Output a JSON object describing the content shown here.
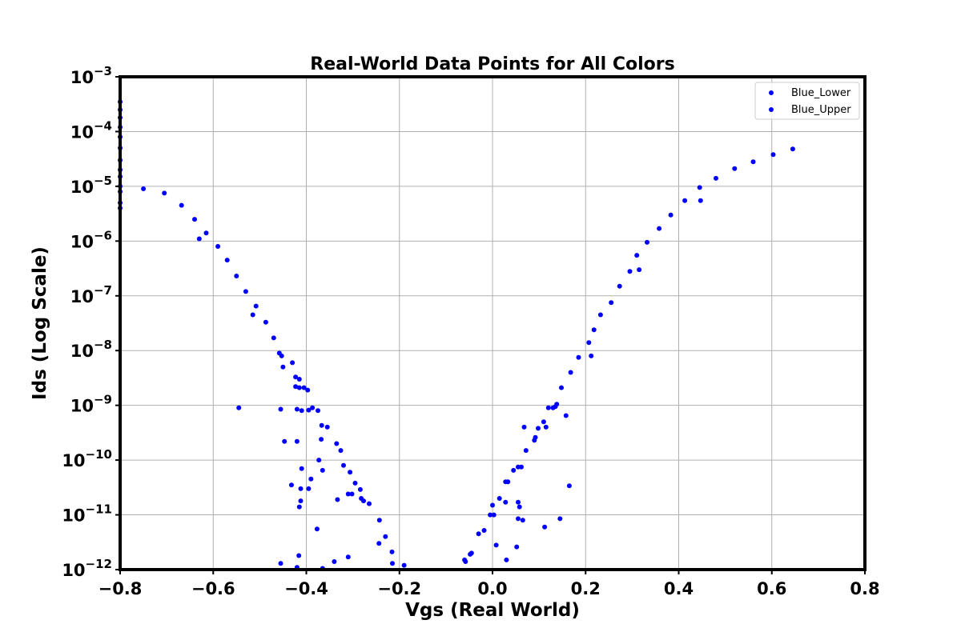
{
  "chart_data": {
    "type": "scatter",
    "title": "Real-World Data Points for All Colors",
    "xlabel": "Vgs (Real World)",
    "ylabel": "Ids (Log Scale)",
    "xlim": [
      -0.8,
      0.8
    ],
    "ylim": [
      1e-12,
      0.001
    ],
    "yscale": "log",
    "grid": true,
    "legend_position": "top-right",
    "x_ticks": [
      "−0.8",
      "−0.6",
      "−0.4",
      "−0.2",
      "0.0",
      "0.2",
      "0.4",
      "0.6",
      "0.8"
    ],
    "x_tick_values": [
      -0.8,
      -0.6,
      -0.4,
      -0.2,
      0.0,
      0.2,
      0.4,
      0.6,
      0.8
    ],
    "y_ticks": [
      {
        "base": "10",
        "exp": "−12",
        "value": -12
      },
      {
        "base": "10",
        "exp": "−11",
        "value": -11
      },
      {
        "base": "10",
        "exp": "−10",
        "value": -10
      },
      {
        "base": "10",
        "exp": "−9",
        "value": -9
      },
      {
        "base": "10",
        "exp": "−8",
        "value": -8
      },
      {
        "base": "10",
        "exp": "−7",
        "value": -7
      },
      {
        "base": "10",
        "exp": "−6",
        "value": -6
      },
      {
        "base": "10",
        "exp": "−5",
        "value": -5
      },
      {
        "base": "10",
        "exp": "−4",
        "value": -4
      },
      {
        "base": "10",
        "exp": "−3",
        "value": -3
      }
    ],
    "series": [
      {
        "name": "Blue_Lower",
        "color": "#0000ff",
        "points": [
          [
            -0.8,
            0.00035
          ],
          [
            -0.8,
            0.00025
          ],
          [
            -0.8,
            0.00018
          ],
          [
            -0.8,
            0.00012
          ],
          [
            -0.8,
            8e-05
          ],
          [
            -0.8,
            5e-05
          ],
          [
            -0.8,
            3e-05
          ],
          [
            -0.8,
            2e-05
          ],
          [
            -0.8,
            1.5e-05
          ],
          [
            -0.8,
            1e-05
          ],
          [
            -0.8,
            8e-06
          ],
          [
            -0.8,
            5e-06
          ],
          [
            -0.8,
            4e-06
          ],
          [
            -0.75,
            9e-06
          ],
          [
            -0.705,
            7.5e-06
          ],
          [
            -0.668,
            4.5e-06
          ],
          [
            -0.64,
            2.5e-06
          ],
          [
            -0.63,
            1.1e-06
          ],
          [
            -0.615,
            1.4e-06
          ],
          [
            -0.59,
            8e-07
          ],
          [
            -0.57,
            4.5e-07
          ],
          [
            -0.55,
            2.3e-07
          ],
          [
            -0.53,
            1.2e-07
          ],
          [
            -0.515,
            4.5e-08
          ],
          [
            -0.508,
            6.5e-08
          ],
          [
            -0.487,
            3.3e-08
          ],
          [
            -0.47,
            1.7e-08
          ],
          [
            -0.458,
            9e-09
          ],
          [
            -0.453,
            8e-09
          ],
          [
            -0.45,
            5e-09
          ],
          [
            -0.43,
            6e-09
          ],
          [
            -0.423,
            3.3e-09
          ],
          [
            -0.415,
            3e-09
          ],
          [
            -0.423,
            2.2e-09
          ],
          [
            -0.415,
            2.1e-09
          ],
          [
            -0.405,
            2.1e-09
          ],
          [
            -0.397,
            1.9e-09
          ],
          [
            -0.42,
            8.5e-10
          ],
          [
            -0.41,
            8e-10
          ],
          [
            -0.395,
            8.2e-10
          ],
          [
            -0.387,
            9e-10
          ],
          [
            -0.375,
            8e-10
          ],
          [
            -0.367,
            4.3e-10
          ],
          [
            -0.355,
            4e-10
          ],
          [
            -0.368,
            2.4e-10
          ],
          [
            -0.335,
            2e-10
          ],
          [
            -0.326,
            1.5e-10
          ],
          [
            -0.32,
            8e-11
          ],
          [
            -0.306,
            6e-11
          ],
          [
            -0.295,
            3.8e-11
          ],
          [
            -0.284,
            2.9e-11
          ],
          [
            -0.282,
            2e-11
          ],
          [
            -0.277,
            1.8e-11
          ],
          [
            -0.265,
            1.6e-11
          ],
          [
            -0.243,
            8e-12
          ],
          [
            -0.23,
            4e-12
          ],
          [
            -0.216,
            2.1e-12
          ],
          [
            -0.244,
            3e-12
          ],
          [
            -0.215,
            1.3e-12
          ],
          [
            -0.19,
            1.2e-12
          ]
        ]
      },
      {
        "name": "Blue_Upper",
        "color": "#0000ff",
        "points": [
          [
            -0.545,
            9e-10
          ],
          [
            -0.455,
            8.5e-10
          ],
          [
            -0.447,
            2.2e-10
          ],
          [
            -0.42,
            2.2e-10
          ],
          [
            -0.41,
            7e-11
          ],
          [
            -0.39,
            4.5e-11
          ],
          [
            -0.432,
            3.5e-11
          ],
          [
            -0.412,
            3e-11
          ],
          [
            -0.395,
            3e-11
          ],
          [
            -0.412,
            1.8e-11
          ],
          [
            -0.415,
            1.4e-11
          ],
          [
            -0.373,
            1e-10
          ],
          [
            -0.365,
            6.5e-11
          ],
          [
            -0.31,
            2.4e-11
          ],
          [
            -0.302,
            2.4e-11
          ],
          [
            -0.333,
            1.9e-11
          ],
          [
            -0.377,
            5.5e-12
          ],
          [
            -0.416,
            1.8e-12
          ],
          [
            -0.455,
            1.3e-12
          ],
          [
            -0.31,
            1.7e-12
          ],
          [
            -0.34,
            1.4e-12
          ],
          [
            -0.42,
            1.1e-12
          ],
          [
            -0.365,
            1.05e-12
          ],
          [
            -0.06,
            1.5e-12
          ],
          [
            -0.058,
            1.4e-12
          ],
          [
            -0.048,
            1.9e-12
          ],
          [
            -0.045,
            2e-12
          ],
          [
            -0.03,
            4.5e-12
          ],
          [
            -0.018,
            5.2e-12
          ],
          [
            -0.005,
            1e-11
          ],
          [
            0.0,
            1.5e-11
          ],
          [
            0.003,
            1e-11
          ],
          [
            0.008,
            2.8e-12
          ],
          [
            0.015,
            2e-11
          ],
          [
            0.028,
            1.7e-11
          ],
          [
            0.028,
            4e-11
          ],
          [
            0.033,
            4e-11
          ],
          [
            0.03,
            1.5e-12
          ],
          [
            0.045,
            6.5e-11
          ],
          [
            0.052,
            2.6e-12
          ],
          [
            0.055,
            7.5e-11
          ],
          [
            0.062,
            7.5e-11
          ],
          [
            0.055,
            8.5e-12
          ],
          [
            0.055,
            1.7e-11
          ],
          [
            0.058,
            1.4e-11
          ],
          [
            0.065,
            8e-12
          ],
          [
            0.068,
            4e-10
          ],
          [
            0.072,
            1.5e-10
          ],
          [
            0.09,
            2.3e-10
          ],
          [
            0.092,
            2.6e-10
          ],
          [
            0.098,
            3.8e-10
          ],
          [
            0.11,
            5e-10
          ],
          [
            0.115,
            4e-10
          ],
          [
            0.112,
            6e-12
          ],
          [
            0.12,
            9e-10
          ],
          [
            0.13,
            9e-10
          ],
          [
            0.135,
            9.5e-10
          ],
          [
            0.138,
            1.05e-09
          ],
          [
            0.145,
            8.5e-12
          ],
          [
            0.148,
            2.1e-09
          ],
          [
            0.158,
            6.5e-10
          ],
          [
            0.165,
            3.4e-11
          ],
          [
            0.168,
            4e-09
          ],
          [
            0.185,
            7.5e-09
          ],
          [
            0.207,
            1.4e-08
          ],
          [
            0.212,
            8e-09
          ],
          [
            0.218,
            2.4e-08
          ],
          [
            0.232,
            4.5e-08
          ],
          [
            0.255,
            7.5e-08
          ],
          [
            0.273,
            1.5e-07
          ],
          [
            0.295,
            2.8e-07
          ],
          [
            0.31,
            5.5e-07
          ],
          [
            0.315,
            3e-07
          ],
          [
            0.332,
            9.5e-07
          ],
          [
            0.358,
            1.7e-06
          ],
          [
            0.383,
            3e-06
          ],
          [
            0.413,
            5.5e-06
          ],
          [
            0.445,
            9.5e-06
          ],
          [
            0.447,
            5.5e-06
          ],
          [
            0.48,
            1.4e-05
          ],
          [
            0.52,
            2.1e-05
          ],
          [
            0.56,
            2.8e-05
          ],
          [
            0.603,
            3.8e-05
          ],
          [
            0.645,
            4.8e-05
          ]
        ]
      }
    ]
  }
}
